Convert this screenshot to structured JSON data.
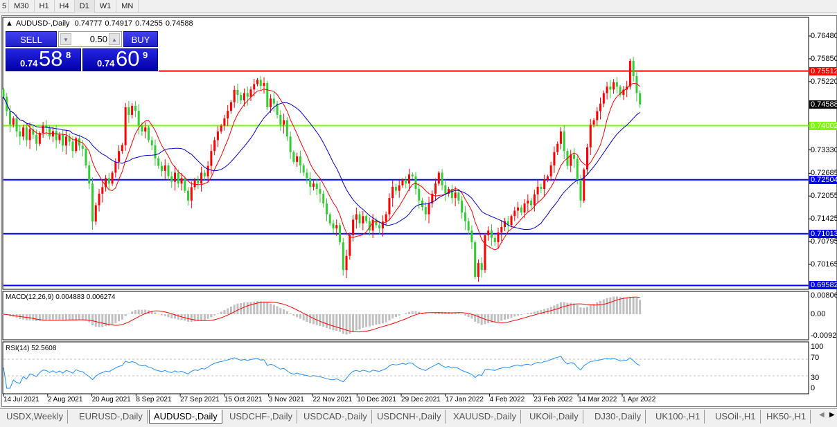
{
  "toolbar": {
    "timeframes": [
      "5",
      "M30",
      "H1",
      "H4",
      "D1",
      "W1",
      "MN"
    ],
    "active": "D1"
  },
  "header": {
    "symbol": "AUDUSD-,Daily",
    "open": "0.74777",
    "high": "0.74917",
    "low": "0.74255",
    "close": "0.74588"
  },
  "trade_panel": {
    "sell_label": "SELL",
    "buy_label": "BUY",
    "lot": "0.50",
    "sell_prefix": "0.74",
    "sell_big": "58",
    "sell_sup": "8",
    "buy_prefix": "0.74",
    "buy_big": "60",
    "buy_sup": "9"
  },
  "colors": {
    "bull": "#ff0000",
    "bear": "#32cd32",
    "ma_fast": "#ff0000",
    "ma_slow": "#0000cc",
    "resistance": "#ff0000",
    "pivot": "#7cfc00",
    "support": "#0000ff",
    "macd_hist": "#c0c0c0",
    "macd_signal": "#ff0000",
    "rsi": "#1e90ff"
  },
  "chart_data": [
    {
      "type": "candlestick",
      "title": "AUDUSD-,Daily",
      "ylim": [
        0.6955,
        0.767
      ],
      "price_ticks": [
        "0.76480",
        "0.75850",
        "0.75220",
        "0.73330",
        "0.72685",
        "0.72055",
        "0.71425",
        "0.70795",
        "0.70165"
      ],
      "date_ticks": [
        "14 Jul 2021",
        "2 Aug 2021",
        "20 Aug 2021",
        "8 Sep 2021",
        "27 Sep 2021",
        "15 Oct 2021",
        "3 Nov 2021",
        "22 Nov 2021",
        "10 Dec 2021",
        "29 Dec 2021",
        "17 Jan 2022",
        "4 Feb 2022",
        "23 Feb 2022",
        "14 Mar 2022",
        "1 Apr 2022"
      ],
      "bars_per_date_tick": 13.4,
      "closes": [
        0.748,
        0.744,
        0.7403,
        0.742,
        0.7384,
        0.737,
        0.7395,
        0.736,
        0.739,
        0.7375,
        0.735,
        0.738,
        0.74,
        0.7394,
        0.737,
        0.7385,
        0.736,
        0.7375,
        0.7345,
        0.737,
        0.7356,
        0.733,
        0.7365,
        0.7345,
        0.7336,
        0.729,
        0.724,
        0.7135,
        0.718,
        0.7212,
        0.723,
        0.7255,
        0.724,
        0.727,
        0.73,
        0.733,
        0.7346,
        0.7451,
        0.743,
        0.7455,
        0.7441,
        0.74,
        0.7384,
        0.7395,
        0.736,
        0.7346,
        0.731,
        0.7289,
        0.7275,
        0.729,
        0.726,
        0.7245,
        0.727,
        0.724,
        0.7255,
        0.722,
        0.7193,
        0.723,
        0.725,
        0.724,
        0.727,
        0.726,
        0.7289,
        0.733,
        0.736,
        0.7384,
        0.74,
        0.742,
        0.7441,
        0.7465,
        0.7499,
        0.7485,
        0.747,
        0.749,
        0.748,
        0.75,
        0.7515,
        0.7527,
        0.751,
        0.7518,
        0.7451,
        0.7475,
        0.7461,
        0.743,
        0.7403,
        0.7415,
        0.737,
        0.7327,
        0.73,
        0.7315,
        0.729,
        0.727,
        0.7255,
        0.7231,
        0.724,
        0.7225,
        0.7212,
        0.7185,
        0.7155,
        0.713,
        0.7116,
        0.7125,
        0.7078,
        0.7001,
        0.704,
        0.7097,
        0.714,
        0.7155,
        0.713,
        0.715,
        0.7136,
        0.711,
        0.714,
        0.7125,
        0.7116,
        0.7135,
        0.7155,
        0.72,
        0.7231,
        0.722,
        0.7235,
        0.725,
        0.724,
        0.7265,
        0.726,
        0.7225,
        0.7193,
        0.7175,
        0.7155,
        0.7185,
        0.7212,
        0.724,
        0.727,
        0.7235,
        0.7212,
        0.7225,
        0.72,
        0.7215,
        0.7193,
        0.716,
        0.7136,
        0.711,
        0.7078,
        0.6982,
        0.702,
        0.7001,
        0.7097,
        0.711,
        0.709,
        0.7078,
        0.7105,
        0.712,
        0.7136,
        0.7125,
        0.715,
        0.7165,
        0.7174,
        0.716,
        0.7185,
        0.7193,
        0.718,
        0.721,
        0.7231,
        0.7225,
        0.725,
        0.726,
        0.729,
        0.7327,
        0.735,
        0.7384,
        0.733,
        0.7289,
        0.732,
        0.7308,
        0.725,
        0.7193,
        0.7279,
        0.734,
        0.7403,
        0.7415,
        0.744,
        0.7461,
        0.749,
        0.7508,
        0.75,
        0.752,
        0.7508,
        0.7485,
        0.75,
        0.7508,
        0.7579,
        0.7537,
        0.749,
        0.74588
      ],
      "horizontal_lines": [
        {
          "price": 0.75512,
          "label": "0.75512",
          "color": "#ff0000"
        },
        {
          "price": 0.74002,
          "label": "0.74002",
          "color": "#7cfc00"
        },
        {
          "price": 0.72504,
          "label": "0.72504",
          "color": "#0000ff"
        },
        {
          "price": 0.71013,
          "label": "0.71013",
          "color": "#0000ff"
        },
        {
          "price": 0.69582,
          "label": "0.69582",
          "color": "#0000ff"
        }
      ],
      "current_price": "0.74588"
    },
    {
      "type": "bar",
      "title": "MACD(12,26,9) 0.004883 0.006274",
      "ylim": [
        -0.00928,
        0.008061
      ],
      "tick_labels": [
        "0.008061",
        "0.00",
        "-0.009280"
      ]
    },
    {
      "type": "line",
      "title": "RSI(14) 52.5608",
      "ylim": [
        0,
        100
      ],
      "levels": [
        70,
        30
      ],
      "tick_labels": [
        "100",
        "70",
        "30",
        "0"
      ]
    }
  ],
  "tabs": [
    "USDX,Weekly",
    "EURUSD-,Daily",
    "AUDUSD-,Daily",
    "USDCHF-,Daily",
    "USDCAD-,Daily",
    "USDCNH-,Daily",
    "XAUUSD-,Daily",
    "UKOil-,Daily",
    "DJ30-,Daily",
    "UK100-,H1",
    "USOil-,H1",
    "HK50-,H1"
  ],
  "active_tab": "AUDUSD-,Daily"
}
